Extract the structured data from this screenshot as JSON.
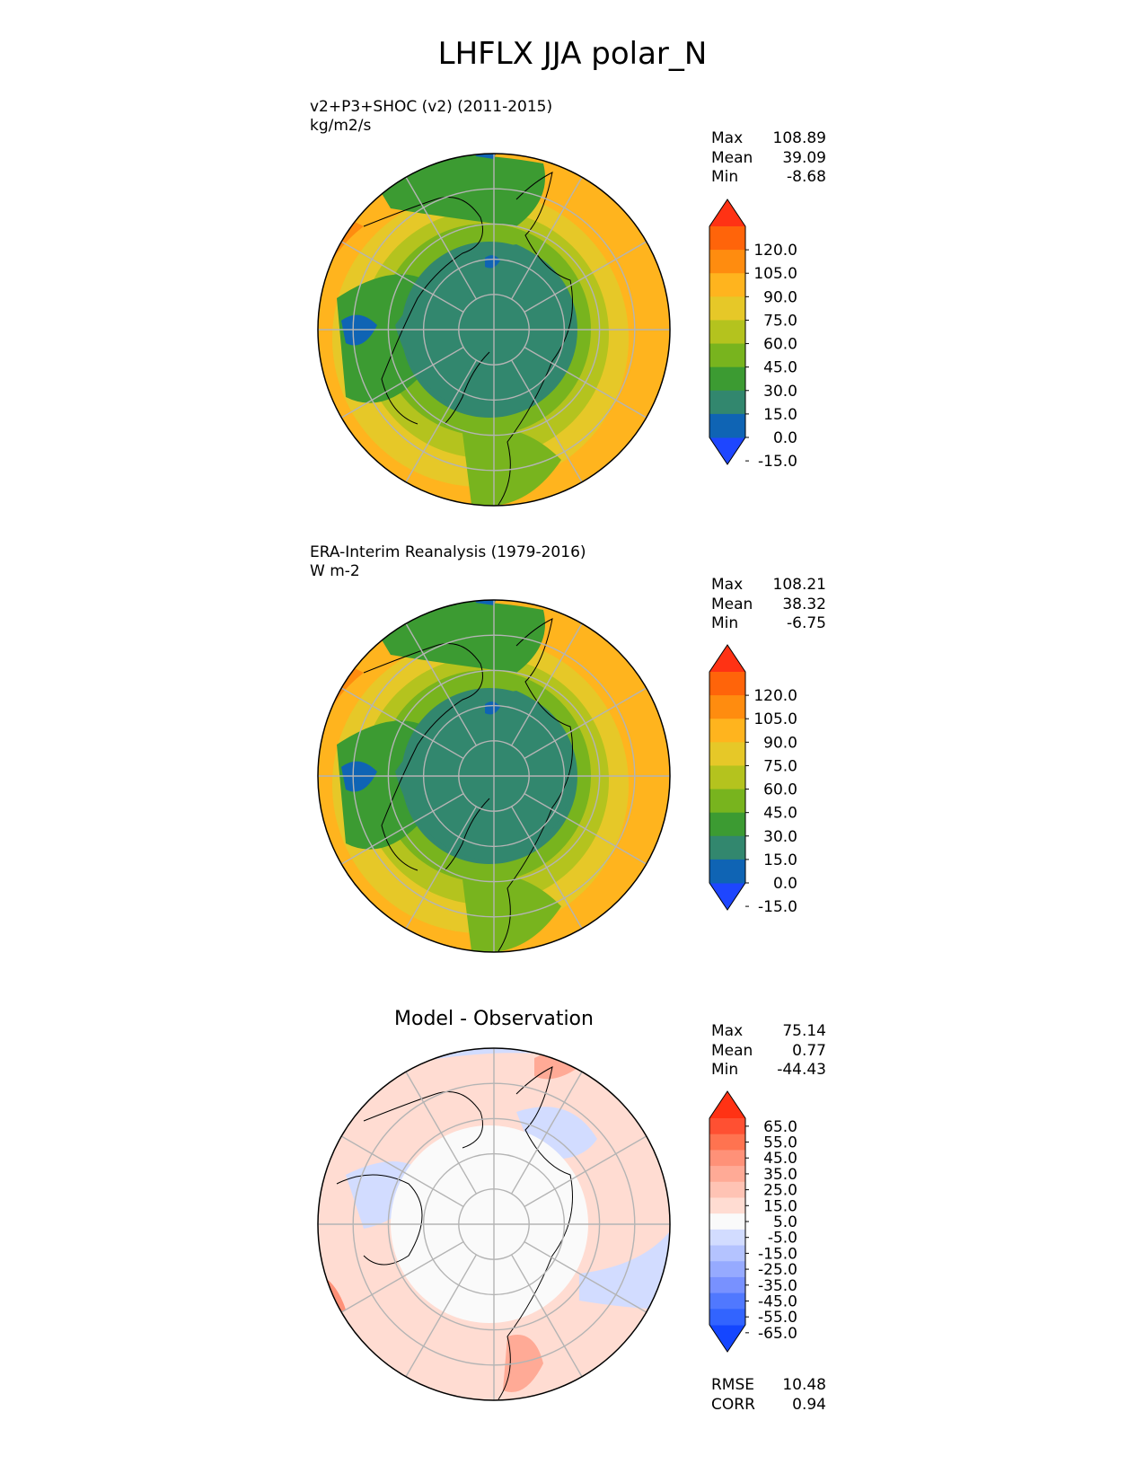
{
  "figure": {
    "title": "LHFLX JJA polar_N"
  },
  "panels": [
    {
      "name": "test",
      "title_line1": "v2+P3+SHOC (v2) (2011-2015)",
      "title_line2": "kg/m2/s",
      "stats": [
        {
          "label": "Max",
          "value": "108.89"
        },
        {
          "label": "Mean",
          "value": "39.09"
        },
        {
          "label": "Min",
          "value": "-8.68"
        }
      ],
      "colorbar_ticks": [
        "120.0",
        "105.0",
        "90.0",
        "75.0",
        "60.0",
        "45.0",
        "30.0",
        "15.0",
        "0.0",
        "-15.0"
      ]
    },
    {
      "name": "reference",
      "title_line1": "ERA-Interim Reanalysis (1979-2016)",
      "title_line2": "W m-2",
      "stats": [
        {
          "label": "Max",
          "value": "108.21"
        },
        {
          "label": "Mean",
          "value": "38.32"
        },
        {
          "label": "Min",
          "value": "-6.75"
        }
      ],
      "colorbar_ticks": [
        "120.0",
        "105.0",
        "90.0",
        "75.0",
        "60.0",
        "45.0",
        "30.0",
        "15.0",
        "0.0",
        "-15.0"
      ]
    },
    {
      "name": "difference",
      "title": "Model - Observation",
      "stats": [
        {
          "label": "Max",
          "value": "75.14"
        },
        {
          "label": "Mean",
          "value": "0.77"
        },
        {
          "label": "Min",
          "value": "-44.43"
        }
      ],
      "metrics": [
        {
          "label": "RMSE",
          "value": "10.48"
        },
        {
          "label": "CORR",
          "value": "0.94"
        }
      ],
      "colorbar_ticks": [
        "65.0",
        "55.0",
        "45.0",
        "35.0",
        "25.0",
        "15.0",
        "5.0",
        "-5.0",
        "-15.0",
        "-25.0",
        "-35.0",
        "-45.0",
        "-55.0",
        "-65.0"
      ]
    }
  ],
  "colors": {
    "field_levels": [
      "#1e46ff",
      "#0f64b4",
      "#32876e",
      "#3c9b32",
      "#78b41e",
      "#b4c31e",
      "#e6c828",
      "#ffb41e",
      "#ff8c0f",
      "#ff640a",
      "#ff3214"
    ],
    "diff_levels": [
      "#1446ff",
      "#3264ff",
      "#5078ff",
      "#7891ff",
      "#96aaff",
      "#b4c3ff",
      "#d2dcff",
      "#fafafa",
      "#ffdcd2",
      "#ffc3b4",
      "#ffaa96",
      "#ff9178",
      "#ff7350",
      "#ff5032",
      "#ff3214"
    ],
    "grid": "#b4b4b4",
    "coast": "#000000"
  }
}
